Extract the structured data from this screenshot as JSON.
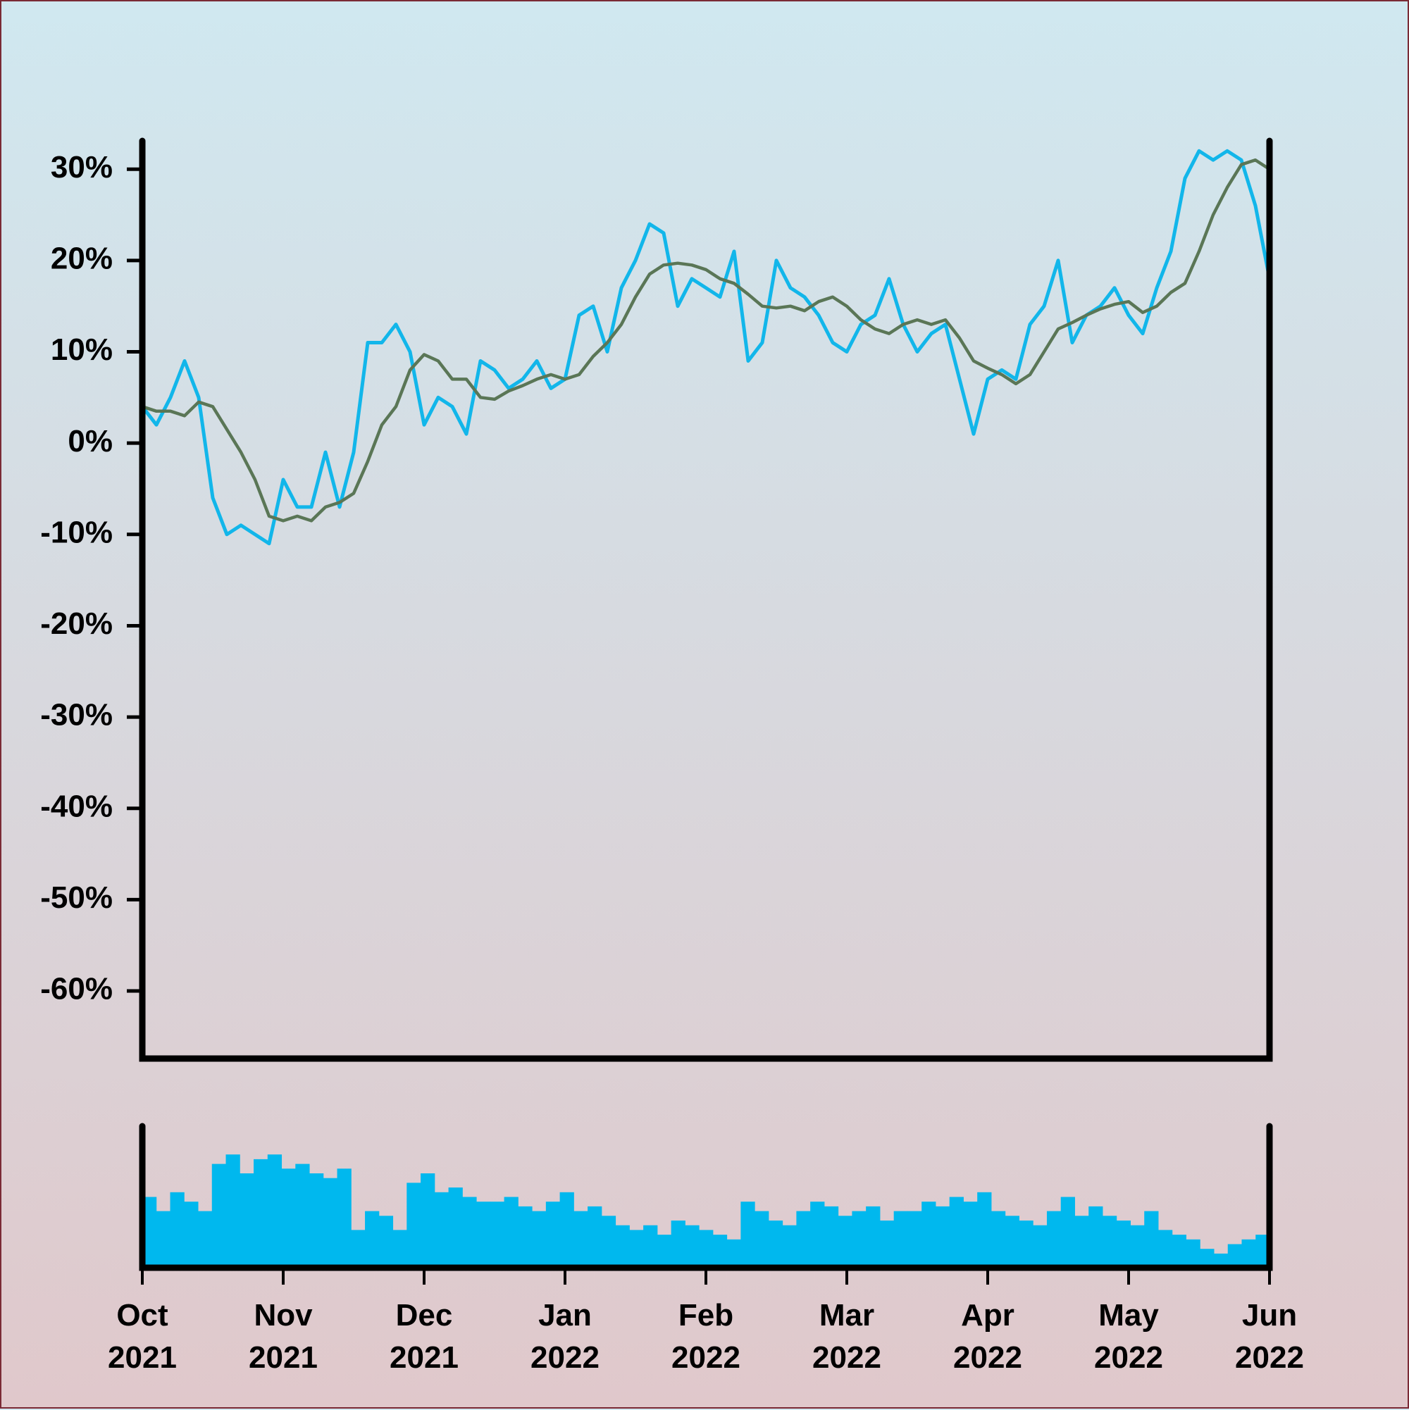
{
  "chart_data": [
    {
      "type": "line",
      "series": [
        {
          "color": "#12b6ea",
          "values": [
            4,
            2,
            5,
            9,
            5,
            -6,
            -10,
            -9,
            -10,
            -11,
            -4,
            -7,
            -7,
            -1,
            -7,
            -1,
            11,
            11,
            13,
            10,
            2,
            5,
            4,
            1,
            9,
            8,
            6,
            7,
            9,
            6,
            7,
            14,
            15,
            10,
            17,
            20,
            24,
            23,
            15,
            18,
            17,
            16,
            21,
            9,
            11,
            20,
            17,
            16,
            14,
            11,
            10,
            13,
            14,
            18,
            13,
            10,
            12,
            13,
            7,
            1,
            7,
            8,
            7,
            13,
            15,
            20,
            11,
            14,
            15,
            17,
            14,
            12,
            17,
            21,
            29,
            32,
            31,
            32,
            31,
            26,
            18
          ]
        },
        {
          "color": "#5a7656",
          "values": [
            4,
            3.5,
            3.5,
            3,
            4.5,
            4,
            1.5,
            -1,
            -4,
            -8,
            -8.5,
            -8,
            -8.5,
            -7,
            -6.5,
            -5.5,
            -2,
            2,
            4,
            8,
            9.7,
            9,
            7,
            7,
            5,
            4.8,
            5.7,
            6.3,
            7,
            7.5,
            7,
            7.5,
            9.5,
            11,
            13,
            16,
            18.5,
            19.5,
            19.7,
            19.5,
            19,
            18,
            17.5,
            16.3,
            15,
            14.8,
            15,
            14.5,
            15.5,
            16,
            15,
            13.5,
            12.5,
            12,
            13,
            13.5,
            13,
            13.5,
            11.5,
            9,
            8.2,
            7.5,
            6.5,
            7.5,
            10,
            12.5,
            13.2,
            14,
            14.7,
            15.2,
            15.5,
            14.3,
            15,
            16.5,
            17.5,
            21,
            25,
            28,
            30.5,
            31,
            30
          ]
        }
      ],
      "ylim": [
        -67.4,
        33.1
      ],
      "yticks": [
        {
          "value": -60,
          "label": "-60%"
        },
        {
          "value": -50,
          "label": "-50%"
        },
        {
          "value": -40,
          "label": "-40%"
        },
        {
          "value": -30,
          "label": "-30%"
        },
        {
          "value": -20,
          "label": "-20%"
        },
        {
          "value": -10,
          "label": "-10%"
        },
        {
          "value": 0,
          "label": "0%"
        },
        {
          "value": 10,
          "label": "10%"
        },
        {
          "value": 20,
          "label": "20%"
        },
        {
          "value": 30,
          "label": "30%"
        }
      ]
    },
    {
      "type": "bar",
      "color": "#00b8ee",
      "values": [
        75,
        60,
        80,
        70,
        60,
        110,
        120,
        100,
        115,
        120,
        105,
        110,
        100,
        95,
        105,
        40,
        60,
        55,
        40,
        90,
        100,
        80,
        85,
        75,
        70,
        70,
        75,
        65,
        60,
        70,
        80,
        60,
        65,
        55,
        45,
        40,
        45,
        35,
        50,
        45,
        40,
        35,
        30,
        70,
        60,
        50,
        45,
        60,
        70,
        65,
        55,
        60,
        65,
        50,
        60,
        60,
        70,
        65,
        75,
        70,
        80,
        60,
        55,
        50,
        45,
        60,
        75,
        55,
        65,
        55,
        50,
        45,
        60,
        40,
        35,
        30,
        20,
        15,
        25,
        30,
        35
      ],
      "ylim": [
        0,
        150
      ],
      "xlim": [
        0,
        8
      ],
      "xticks": [
        {
          "value": 0,
          "label": "Oct\n2021"
        },
        {
          "value": 1,
          "label": "Nov\n2021"
        },
        {
          "value": 2,
          "label": "Dec\n2021"
        },
        {
          "value": 3,
          "label": "Jan\n2022"
        },
        {
          "value": 4,
          "label": "Feb\n2022"
        },
        {
          "value": 5,
          "label": "Mar\n2022"
        },
        {
          "value": 6,
          "label": "Apr\n2022"
        },
        {
          "value": 7,
          "label": "May\n2022"
        },
        {
          "value": 8,
          "label": "Jun\n2022"
        }
      ]
    }
  ]
}
